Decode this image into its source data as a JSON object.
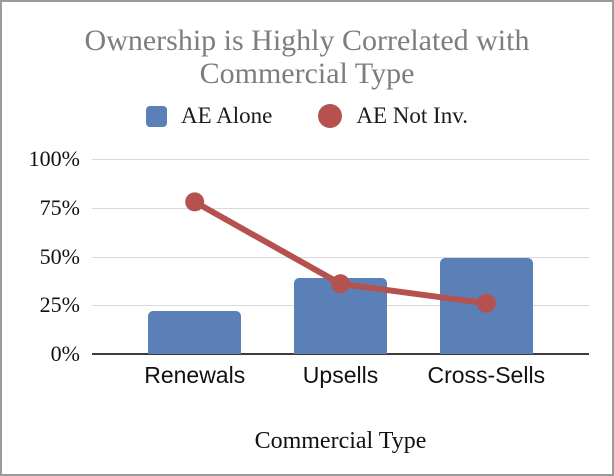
{
  "window": {
    "border_color": "#9b9b9b",
    "background_color": "#ffffff",
    "title_color": "#7d7d7d"
  },
  "chart_data": {
    "type": "bar",
    "subtype": "combo-bar-line",
    "title": "Ownership is Highly Correlated with Commercial Type",
    "xlabel": "Commercial Type",
    "ylabel": "",
    "categories": [
      "Renewals",
      "Upsells",
      "Cross-Sells"
    ],
    "series": [
      {
        "name": "AE Alone",
        "type": "bar",
        "swatch": "square",
        "color": "#5b80b8",
        "values": [
          22,
          39,
          49
        ]
      },
      {
        "name": "AE Not Inv.",
        "type": "line",
        "swatch": "circle",
        "color": "#b5524f",
        "values": [
          78,
          36,
          26
        ]
      }
    ],
    "y_axis": {
      "ticks": [
        "0%",
        "25%",
        "50%",
        "75%",
        "100%"
      ],
      "tick_values": [
        0,
        25,
        50,
        75,
        100
      ],
      "min": 0,
      "max": 100
    },
    "grid": true,
    "gridline_color": "#d9d9d9",
    "axis_line_color": "#3c3c3c",
    "legend_position": "top"
  }
}
